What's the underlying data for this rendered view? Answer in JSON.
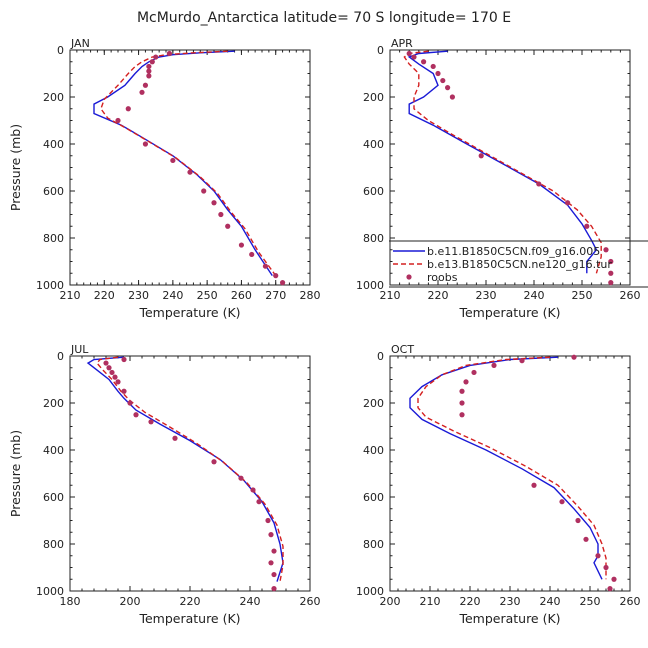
{
  "figure": {
    "title": "McMurdo_Antarctica  latitude= 70 S longitude= 170 E"
  },
  "legend": {
    "items": [
      {
        "label": "b.e11.B1850C5CN.f09_g16.005",
        "color": "#1a1ad6",
        "style": "solid"
      },
      {
        "label": "b.e13.B1850C5CN.ne120_g16.tur",
        "color": "#d42020",
        "style": "dashed"
      },
      {
        "label": "roobs",
        "color": "#b03060",
        "style": "dots"
      }
    ]
  },
  "chart_data": [
    {
      "type": "line",
      "month": "JAN",
      "xlabel": "Temperature (K)",
      "ylabel": "Pressure (mb)",
      "xlim": [
        210,
        280
      ],
      "ylim": [
        1000,
        0
      ],
      "xticks": [
        210,
        220,
        230,
        240,
        250,
        260,
        270,
        280
      ],
      "yticks": [
        0,
        200,
        400,
        600,
        800,
        1000
      ],
      "series": [
        {
          "name": "b.e11.B1850C5CN.f09_g16.005",
          "color": "#1a1ad6",
          "style": "solid",
          "points": [
            [
              258,
              5
            ],
            [
              248,
              12
            ],
            [
              240,
              20
            ],
            [
              236,
              30
            ],
            [
              233,
              50
            ],
            [
              231,
              70
            ],
            [
              229,
              100
            ],
            [
              226,
              150
            ],
            [
              221,
              200
            ],
            [
              217,
              230
            ],
            [
              217,
              270
            ],
            [
              225,
              320
            ],
            [
              232,
              380
            ],
            [
              240,
              450
            ],
            [
              247,
              530
            ],
            [
              252,
              600
            ],
            [
              256,
              680
            ],
            [
              260,
              750
            ],
            [
              264,
              850
            ],
            [
              269,
              960
            ]
          ]
        },
        {
          "name": "b.e13.B1850C5CN.ne120_g16.tur",
          "color": "#d42020",
          "style": "dashed",
          "points": [
            [
              256,
              5
            ],
            [
              246,
              12
            ],
            [
              238,
              20
            ],
            [
              234,
              30
            ],
            [
              231,
              50
            ],
            [
              229,
              70
            ],
            [
              227,
              100
            ],
            [
              224,
              150
            ],
            [
              220,
              210
            ],
            [
              219,
              250
            ],
            [
              221,
              290
            ],
            [
              226,
              330
            ],
            [
              233,
              390
            ],
            [
              241,
              460
            ],
            [
              248,
              540
            ],
            [
              253,
              610
            ],
            [
              257,
              690
            ],
            [
              261,
              760
            ],
            [
              265,
              860
            ],
            [
              270,
              960
            ]
          ]
        },
        {
          "name": "roobs",
          "color": "#b03060",
          "style": "dots",
          "points": [
            [
              239,
              15
            ],
            [
              235,
              30
            ],
            [
              234,
              50
            ],
            [
              233,
              70
            ],
            [
              233,
              90
            ],
            [
              233,
              110
            ],
            [
              232,
              150
            ],
            [
              231,
              180
            ],
            [
              227,
              250
            ],
            [
              224,
              300
            ],
            [
              232,
              400
            ],
            [
              240,
              470
            ],
            [
              245,
              520
            ],
            [
              249,
              600
            ],
            [
              252,
              650
            ],
            [
              254,
              700
            ],
            [
              256,
              750
            ],
            [
              260,
              830
            ],
            [
              263,
              870
            ],
            [
              267,
              920
            ],
            [
              270,
              960
            ],
            [
              272,
              990
            ]
          ]
        }
      ]
    },
    {
      "type": "line",
      "month": "APR",
      "xlabel": "Temperature (K)",
      "ylabel": "",
      "xlim": [
        210,
        260
      ],
      "ylim": [
        1000,
        0
      ],
      "xticks": [
        210,
        220,
        230,
        240,
        250,
        260
      ],
      "yticks": [
        0,
        200,
        400,
        600,
        800,
        1000
      ],
      "series": [
        {
          "name": "b.e11.B1850C5CN.f09_g16.005",
          "color": "#1a1ad6",
          "style": "solid",
          "points": [
            [
              222,
              5
            ],
            [
              216,
              15
            ],
            [
              214,
              30
            ],
            [
              216,
              60
            ],
            [
              219,
              100
            ],
            [
              220,
              150
            ],
            [
              217,
              200
            ],
            [
              214,
              230
            ],
            [
              214,
              270
            ],
            [
              219,
              320
            ],
            [
              226,
              400
            ],
            [
              234,
              490
            ],
            [
              241,
              570
            ],
            [
              247,
              660
            ],
            [
              250,
              740
            ],
            [
              252,
              810
            ],
            [
              253,
              850
            ],
            [
              251,
              900
            ],
            [
              251,
              950
            ]
          ]
        },
        {
          "name": "b.e13.B1850C5CN.ne120_g16.tur",
          "color": "#d42020",
          "style": "dashed",
          "points": [
            [
              218,
              5
            ],
            [
              214,
              15
            ],
            [
              213,
              30
            ],
            [
              214,
              60
            ],
            [
              216,
              100
            ],
            [
              216,
              150
            ],
            [
              215,
              200
            ],
            [
              215,
              250
            ],
            [
              218,
              300
            ],
            [
              223,
              360
            ],
            [
              230,
              440
            ],
            [
              237,
              520
            ],
            [
              244,
              600
            ],
            [
              249,
              680
            ],
            [
              252,
              750
            ],
            [
              254,
              820
            ],
            [
              254,
              880
            ],
            [
              253,
              950
            ]
          ]
        },
        {
          "name": "roobs",
          "color": "#b03060",
          "style": "dots",
          "points": [
            [
              214,
              15
            ],
            [
              215,
              30
            ],
            [
              217,
              50
            ],
            [
              219,
              70
            ],
            [
              220,
              100
            ],
            [
              221,
              130
            ],
            [
              222,
              160
            ],
            [
              223,
              200
            ],
            [
              229,
              450
            ],
            [
              241,
              570
            ],
            [
              247,
              650
            ],
            [
              251,
              750
            ],
            [
              255,
              850
            ],
            [
              256,
              900
            ],
            [
              256,
              950
            ],
            [
              256,
              990
            ]
          ]
        }
      ]
    },
    {
      "type": "line",
      "month": "JUL",
      "xlabel": "Temperature (K)",
      "ylabel": "Pressure (mb)",
      "xlim": [
        180,
        260
      ],
      "ylim": [
        1000,
        0
      ],
      "xticks": [
        180,
        200,
        220,
        240,
        260
      ],
      "yticks": [
        0,
        200,
        400,
        600,
        800,
        1000
      ],
      "series": [
        {
          "name": "b.e11.B1850C5CN.f09_g16.005",
          "color": "#1a1ad6",
          "style": "solid",
          "points": [
            [
              198,
              5
            ],
            [
              188,
              15
            ],
            [
              186,
              30
            ],
            [
              189,
              60
            ],
            [
              193,
              100
            ],
            [
              196,
              150
            ],
            [
              198,
              180
            ],
            [
              202,
              230
            ],
            [
              210,
              290
            ],
            [
              220,
              360
            ],
            [
              230,
              440
            ],
            [
              238,
              530
            ],
            [
              244,
              620
            ],
            [
              248,
              710
            ],
            [
              250,
              800
            ],
            [
              251,
              880
            ],
            [
              249,
              960
            ]
          ]
        },
        {
          "name": "b.e13.B1850C5CN.ne120_g16.tur",
          "color": "#d42020",
          "style": "dashed",
          "points": [
            [
              196,
              5
            ],
            [
              190,
              15
            ],
            [
              189,
              30
            ],
            [
              191,
              60
            ],
            [
              194,
              100
            ],
            [
              197,
              150
            ],
            [
              200,
              190
            ],
            [
              205,
              240
            ],
            [
              213,
              300
            ],
            [
              222,
              370
            ],
            [
              231,
              450
            ],
            [
              239,
              540
            ],
            [
              245,
              630
            ],
            [
              249,
              720
            ],
            [
              251,
              810
            ],
            [
              251,
              890
            ],
            [
              250,
              960
            ]
          ]
        },
        {
          "name": "roobs",
          "color": "#b03060",
          "style": "dots",
          "points": [
            [
              198,
              15
            ],
            [
              192,
              30
            ],
            [
              193,
              50
            ],
            [
              194,
              70
            ],
            [
              195,
              90
            ],
            [
              196,
              110
            ],
            [
              198,
              150
            ],
            [
              200,
              200
            ],
            [
              202,
              250
            ],
            [
              207,
              280
            ],
            [
              215,
              350
            ],
            [
              228,
              450
            ],
            [
              237,
              520
            ],
            [
              241,
              570
            ],
            [
              243,
              620
            ],
            [
              246,
              700
            ],
            [
              247,
              760
            ],
            [
              248,
              830
            ],
            [
              247,
              880
            ],
            [
              248,
              930
            ],
            [
              248,
              990
            ]
          ]
        }
      ]
    },
    {
      "type": "line",
      "month": "OCT",
      "xlabel": "Temperature (K)",
      "ylabel": "",
      "xlim": [
        200,
        260
      ],
      "ylim": [
        1000,
        0
      ],
      "xticks": [
        200,
        210,
        220,
        230,
        240,
        250,
        260
      ],
      "yticks": [
        0,
        200,
        400,
        600,
        800,
        1000
      ],
      "series": [
        {
          "name": "b.e11.B1850C5CN.f09_g16.005",
          "color": "#1a1ad6",
          "style": "solid",
          "points": [
            [
              242,
              5
            ],
            [
              230,
              15
            ],
            [
              220,
              40
            ],
            [
              213,
              80
            ],
            [
              208,
              130
            ],
            [
              205,
              180
            ],
            [
              205,
              220
            ],
            [
              208,
              270
            ],
            [
              215,
              330
            ],
            [
              224,
              400
            ],
            [
              233,
              480
            ],
            [
              241,
              560
            ],
            [
              246,
              650
            ],
            [
              250,
              730
            ],
            [
              252,
              800
            ],
            [
              252,
              850
            ],
            [
              251,
              880
            ],
            [
              253,
              950
            ]
          ]
        },
        {
          "name": "b.e13.B1850C5CN.ne120_g16.tur",
          "color": "#d42020",
          "style": "dashed",
          "points": [
            [
              240,
              5
            ],
            [
              229,
              15
            ],
            [
              219,
              40
            ],
            [
              213,
              80
            ],
            [
              209,
              130
            ],
            [
              207,
              180
            ],
            [
              207,
              220
            ],
            [
              209,
              260
            ],
            [
              216,
              320
            ],
            [
              225,
              390
            ],
            [
              234,
              470
            ],
            [
              242,
              550
            ],
            [
              247,
              640
            ],
            [
              251,
              720
            ],
            [
              253,
              800
            ],
            [
              254,
              860
            ],
            [
              254,
              950
            ]
          ]
        },
        {
          "name": "roobs",
          "color": "#b03060",
          "style": "dots",
          "points": [
            [
              246,
              5
            ],
            [
              233,
              20
            ],
            [
              226,
              40
            ],
            [
              221,
              70
            ],
            [
              219,
              110
            ],
            [
              218,
              150
            ],
            [
              218,
              200
            ],
            [
              218,
              250
            ],
            [
              236,
              550
            ],
            [
              243,
              620
            ],
            [
              247,
              700
            ],
            [
              249,
              780
            ],
            [
              252,
              850
            ],
            [
              254,
              900
            ],
            [
              256,
              950
            ],
            [
              255,
              990
            ]
          ]
        }
      ]
    }
  ]
}
